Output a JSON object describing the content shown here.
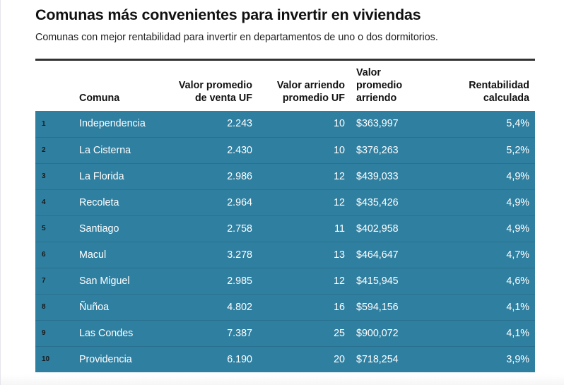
{
  "header": {
    "title": "Comunas más convenientes para invertir en viviendas",
    "subtitle": "Comunas con mejor rentabilidad para invertir en departamentos de uno o dos dormitorios."
  },
  "table": {
    "columns": [
      {
        "key": "rank",
        "label": ""
      },
      {
        "key": "comuna",
        "label": "Comuna"
      },
      {
        "key": "venta_uf",
        "label": "Valor promedio de venta UF"
      },
      {
        "key": "arriendo_uf",
        "label": "Valor arriendo promedio UF"
      },
      {
        "key": "arriendo_clp",
        "label": "Valor promedio arriendo"
      },
      {
        "key": "rentabilidad",
        "label": "Rentabilidad calculada"
      }
    ],
    "rows": [
      {
        "rank": "1",
        "comuna": "Independencia",
        "venta_uf": "2.243",
        "arriendo_uf": "10",
        "arriendo_clp": "$363,997",
        "rentabilidad": "5,4%"
      },
      {
        "rank": "2",
        "comuna": "La Cisterna",
        "venta_uf": "2.430",
        "arriendo_uf": "10",
        "arriendo_clp": "$376,263",
        "rentabilidad": "5,2%"
      },
      {
        "rank": "3",
        "comuna": "La Florida",
        "venta_uf": "2.986",
        "arriendo_uf": "12",
        "arriendo_clp": "$439,033",
        "rentabilidad": "4,9%"
      },
      {
        "rank": "4",
        "comuna": "Recoleta",
        "venta_uf": "2.964",
        "arriendo_uf": "12",
        "arriendo_clp": "$435,426",
        "rentabilidad": "4,9%"
      },
      {
        "rank": "5",
        "comuna": "Santiago",
        "venta_uf": "2.758",
        "arriendo_uf": "11",
        "arriendo_clp": "$402,958",
        "rentabilidad": "4,9%"
      },
      {
        "rank": "6",
        "comuna": "Macul",
        "venta_uf": "3.278",
        "arriendo_uf": "13",
        "arriendo_clp": "$464,647",
        "rentabilidad": "4,7%"
      },
      {
        "rank": "7",
        "comuna": "San Miguel",
        "venta_uf": "2.985",
        "arriendo_uf": "12",
        "arriendo_clp": "$415,945",
        "rentabilidad": "4,6%"
      },
      {
        "rank": "8",
        "comuna": "Ñuñoa",
        "venta_uf": "4.802",
        "arriendo_uf": "16",
        "arriendo_clp": "$594,156",
        "rentabilidad": "4,1%"
      },
      {
        "rank": "9",
        "comuna": "Las Condes",
        "venta_uf": "7.387",
        "arriendo_uf": "25",
        "arriendo_clp": "$900,072",
        "rentabilidad": "4,1%"
      },
      {
        "rank": "10",
        "comuna": "Providencia",
        "venta_uf": "6.190",
        "arriendo_uf": "20",
        "arriendo_clp": "$718,254",
        "rentabilidad": "3,9%"
      }
    ]
  },
  "colors": {
    "row_background": "#2f7fa0",
    "row_separator": "#2a7090",
    "rule": "#333333"
  }
}
